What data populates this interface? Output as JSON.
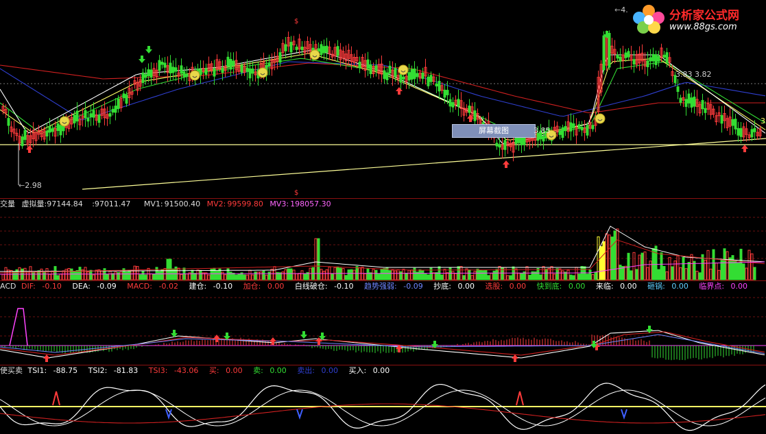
{
  "colors": {
    "background": "#000000",
    "up": "#ff3b3b",
    "down": "#33dd33",
    "ma_white": "#ffffff",
    "ma_yellow": "#ffff66",
    "ma_green": "#33dd33",
    "ma_blue": "#2f3fd0",
    "ma_red": "#d02020",
    "ma_magenta": "#ff44ff",
    "support_line": "#ffff99",
    "separator": "#8a1010"
  },
  "main": {
    "low_label": "2.98",
    "high_label": "4.",
    "mid_labels": "3.83 3.82",
    "screenshot_button": "屏幕截图",
    "tooltip_value": "3.85",
    "right_edge_label": "3",
    "signal_dollar": "$"
  },
  "watermark": {
    "title": "分析家公式网",
    "url": "www.88gs.com"
  },
  "volume": {
    "name": "交量",
    "virtual_label": "虚拟量:",
    "virtual_value": "97144.84",
    "vol_value": ":97011.47",
    "mv1_label": "MV1:",
    "mv1_value": "91500.40",
    "mv2_label": "MV2:",
    "mv2_value": "99599.80",
    "mv3_label": "MV3:",
    "mv3_value": "198057.30"
  },
  "macd": {
    "name": "ACD",
    "items": [
      {
        "label": "DIF:",
        "value": "-0.10",
        "color": "#ff3b3b"
      },
      {
        "label": "DEA:",
        "value": "-0.09",
        "color": "#ffffff"
      },
      {
        "label": "MACD:",
        "value": "-0.02",
        "color": "#ff3b3b"
      },
      {
        "label": "建仓:",
        "value": "-0.10",
        "color": "#ffffff"
      },
      {
        "label": "加仓:",
        "value": "0.00",
        "color": "#ff3b3b"
      },
      {
        "label": "白线破仓:",
        "value": "-0.10",
        "color": "#ffffff"
      },
      {
        "label": "趋势强弱:",
        "value": "-0.09",
        "color": "#6f86ff"
      },
      {
        "label": "抄底:",
        "value": "0.00",
        "color": "#ffffff"
      },
      {
        "label": "选股:",
        "value": "0.00",
        "color": "#ff3b3b"
      },
      {
        "label": "快到底:",
        "value": "0.00",
        "color": "#33dd33"
      },
      {
        "label": "来临:",
        "value": "0.00",
        "color": "#ffffff"
      },
      {
        "label": "砸锅:",
        "value": "0.00",
        "color": "#5fd0ff"
      },
      {
        "label": "临界点:",
        "value": "0.00",
        "color": "#ff44ff"
      }
    ]
  },
  "tsi": {
    "name": "使买卖",
    "items": [
      {
        "label": "TSI1:",
        "value": "-88.75",
        "color": "#ffffff"
      },
      {
        "label": "TSI2:",
        "value": "-81.83",
        "color": "#ffffff"
      },
      {
        "label": "TSI3:",
        "value": "-43.06",
        "color": "#ff3b3b"
      },
      {
        "label": "买:",
        "value": "0.00",
        "color": "#ff3b3b"
      },
      {
        "label": "卖:",
        "value": "0.00",
        "color": "#33dd33"
      },
      {
        "label": "卖出:",
        "value": "0.00",
        "color": "#2f3fd0"
      },
      {
        "label": "买入:",
        "value": "0.00",
        "color": "#ffffff"
      }
    ]
  }
}
